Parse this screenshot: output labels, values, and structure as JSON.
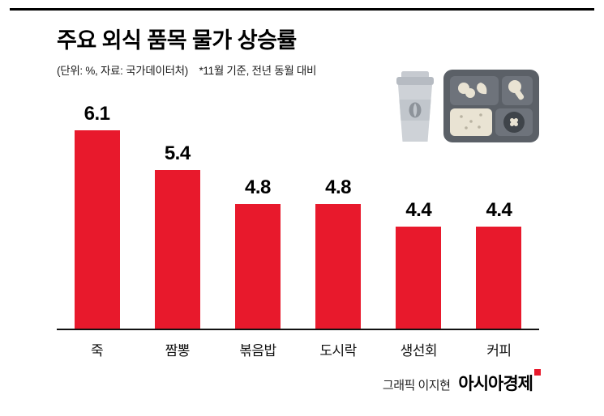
{
  "header": {
    "title": "주요 외식 품목 물가 상승률",
    "subtitle_unit": "(단위: %, 자료: 국가데이터처)",
    "subtitle_note": "*11월 기준, 전년 동월 대비"
  },
  "chart_data": {
    "type": "bar",
    "title": "주요 외식 품목 물가 상승률",
    "unit": "%",
    "source": "국가데이터처",
    "note": "*11월 기준, 전년 동월 대비",
    "categories": [
      "죽",
      "짬뽕",
      "볶음밥",
      "도시락",
      "생선회",
      "커피"
    ],
    "values": [
      6.1,
      5.4,
      4.8,
      4.8,
      4.4,
      4.4
    ],
    "bar_color": "#e8192c",
    "axis_color": "#111111",
    "ylim": [
      0,
      6.5
    ],
    "grid": false,
    "legend": false
  },
  "illustration": {
    "items": [
      "coffee-cup-icon",
      "lunch-box-icon"
    ],
    "cup_color": "#ced2d7",
    "box_color": "#5b6067"
  },
  "footer": {
    "credit": "그래픽 이지현",
    "brand": "아시아경제",
    "brand_mark_color": "#e8192c"
  }
}
